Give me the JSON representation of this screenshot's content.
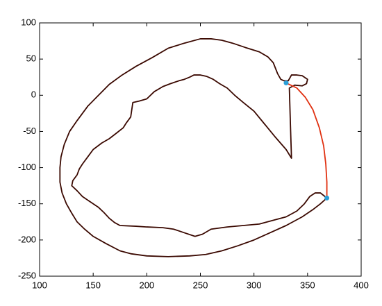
{
  "chart_data": {
    "type": "line",
    "xlim": [
      100,
      400
    ],
    "ylim": [
      -250,
      100
    ],
    "xticks": [
      100,
      150,
      200,
      250,
      300,
      350,
      400
    ],
    "yticks": [
      -250,
      -200,
      -150,
      -100,
      -50,
      0,
      50,
      100
    ],
    "series": [
      {
        "type": "line",
        "closed": true,
        "color": "#3a0800",
        "x": [
          333,
          334,
          335,
          330,
          320,
          310,
          300,
          290,
          282,
          275,
          268,
          262,
          256,
          250,
          244,
          240,
          235,
          230,
          222,
          215,
          207,
          200,
          193,
          187,
          186,
          185,
          181,
          178,
          172,
          165,
          158,
          150,
          145,
          140,
          137,
          135,
          131,
          130,
          135,
          140,
          148,
          155,
          160,
          165,
          170,
          175,
          190,
          200,
          215,
          225,
          235,
          245,
          252,
          260,
          275,
          290,
          305,
          320,
          330,
          340,
          347,
          352,
          357,
          362,
          368,
          362,
          355,
          345,
          330,
          315,
          300,
          285,
          270,
          255,
          240,
          220,
          200,
          185,
          175,
          162,
          150,
          142,
          135,
          130,
          125,
          121,
          119,
          119,
          120,
          123,
          128,
          135,
          145,
          155,
          165,
          177,
          190,
          205,
          220,
          235,
          250,
          260,
          270,
          280,
          292,
          305,
          313,
          318,
          322,
          325,
          328,
          332,
          335,
          340,
          345,
          350,
          349,
          345,
          338,
          333
        ],
        "values": [
          10,
          -40,
          -87,
          -75,
          -58,
          -40,
          -22,
          -10,
          0,
          10,
          16,
          22,
          26,
          28,
          28,
          25,
          22,
          20,
          16,
          12,
          5,
          -5,
          -8,
          -10,
          -20,
          -30,
          -38,
          -45,
          -52,
          -60,
          -66,
          -75,
          -85,
          -95,
          -102,
          -110,
          -118,
          -125,
          -132,
          -140,
          -148,
          -155,
          -162,
          -170,
          -176,
          -180,
          -181,
          -182,
          -183,
          -185,
          -190,
          -195,
          -192,
          -185,
          -182,
          -180,
          -178,
          -172,
          -168,
          -160,
          -150,
          -140,
          -135,
          -135,
          -142,
          -150,
          -158,
          -168,
          -180,
          -190,
          -200,
          -208,
          -215,
          -220,
          -222,
          -223,
          -222,
          -219,
          -215,
          -205,
          -195,
          -185,
          -175,
          -163,
          -150,
          -135,
          -120,
          -100,
          -85,
          -68,
          -50,
          -35,
          -15,
          0,
          15,
          28,
          40,
          52,
          65,
          72,
          78,
          78,
          76,
          72,
          66,
          60,
          53,
          45,
          30,
          22,
          20,
          20,
          28,
          28,
          27,
          22,
          16,
          13,
          14,
          10
        ]
      },
      {
        "type": "line",
        "color": "#e03010",
        "x": [
          330,
          340,
          348,
          355,
          361,
          365,
          367,
          368,
          368
        ],
        "values": [
          17,
          10,
          -3,
          -20,
          -45,
          -70,
          -95,
          -120,
          -142
        ]
      },
      {
        "type": "scatter",
        "color": "#2a9fd8",
        "x": [
          330,
          368
        ],
        "values": [
          17,
          -142
        ]
      }
    ]
  }
}
